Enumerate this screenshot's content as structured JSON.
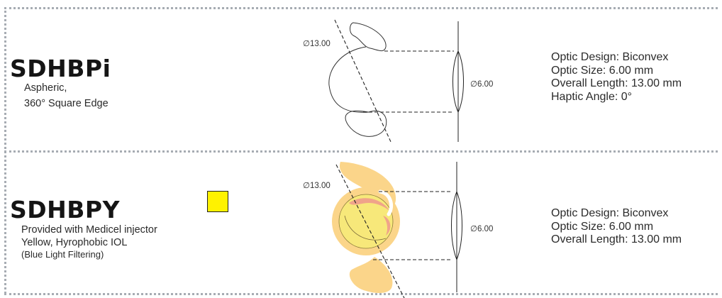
{
  "products": [
    {
      "model": "SDHBPi",
      "description": [
        "Aspheric,",
        "360° Square Edge"
      ],
      "diagram": {
        "overall_length_label": "∅13.00",
        "optic_size_label": "∅6.00"
      },
      "specs": [
        "Optic Design: Biconvex",
        "Optic Size: 6.00 mm",
        "Overall Length: 13.00 mm",
        "Haptic Angle: 0°"
      ]
    },
    {
      "model": "SDHBPY",
      "description": [
        "Provided with Medicel injector",
        "Yellow, Hyrophobic IOL",
        "(Blue Light Filtering)"
      ],
      "color_swatch": "#fff200",
      "lens_colors": {
        "haptic": "#fbd58a",
        "optic": "#f7e87a",
        "accent": "#f0a38a"
      },
      "diagram": {
        "overall_length_label": "∅13.00",
        "optic_size_label": "∅6.00"
      },
      "specs": [
        "Optic Design: Biconvex",
        "Optic Size: 6.00 mm",
        "Overall Length: 13.00 mm"
      ]
    }
  ]
}
